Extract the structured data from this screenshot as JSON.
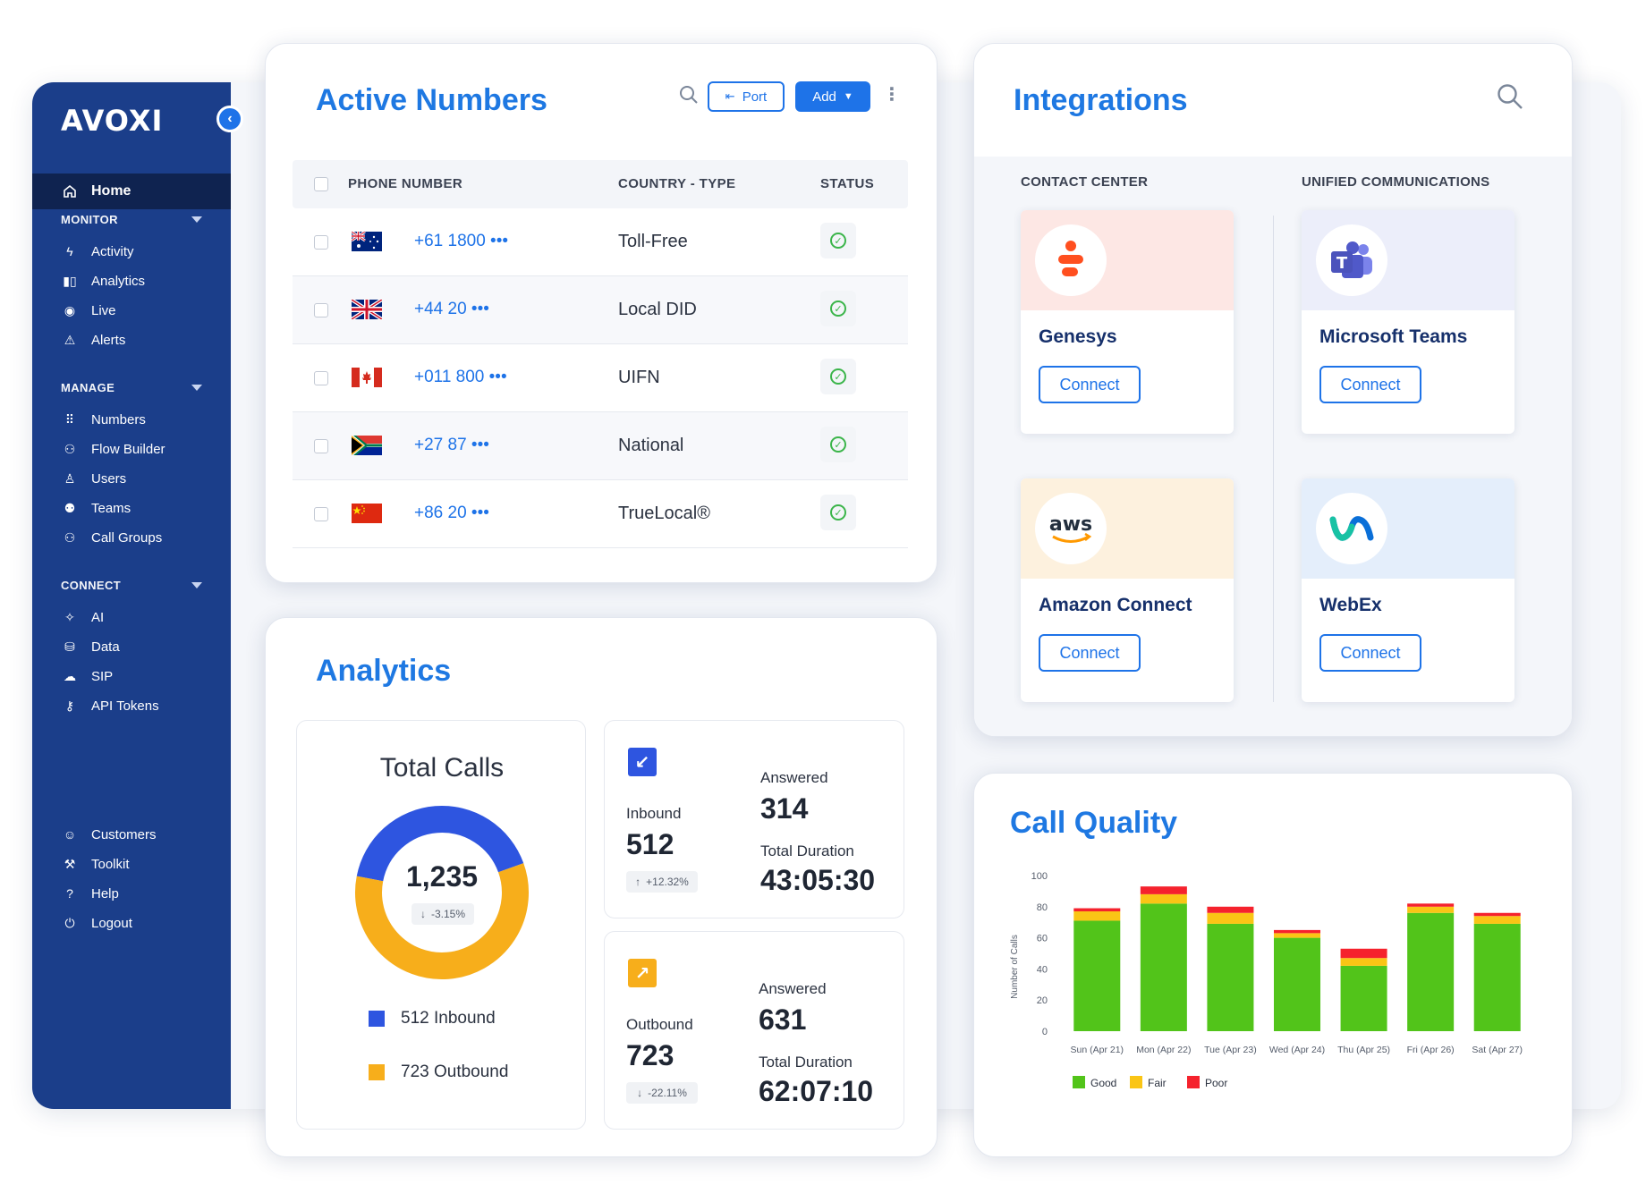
{
  "sidebar": {
    "logo": "AVOXI",
    "collapse_icon": "‹",
    "home": "Home",
    "monitor_label": "MONITOR",
    "monitor": [
      "Activity",
      "Analytics",
      "Live",
      "Alerts"
    ],
    "manage_label": "MANAGE",
    "manage": [
      "Numbers",
      "Flow Builder",
      "Users",
      "Teams",
      "Call Groups"
    ],
    "connect_label": "CONNECT",
    "connect": [
      "AI",
      "Data",
      "SIP",
      "API Tokens"
    ],
    "bottom": [
      "Customers",
      "Toolkit",
      "Help",
      "Logout"
    ]
  },
  "active_numbers": {
    "title": "Active Numbers",
    "port_label": "Port",
    "add_label": "Add",
    "columns": [
      "PHONE NUMBER",
      "COUNTRY - TYPE",
      "STATUS"
    ],
    "rows": [
      {
        "flag": "au",
        "number": "+61 1800 •••",
        "type": "Toll-Free"
      },
      {
        "flag": "uk",
        "number": "+44 20 •••",
        "type": "Local DID"
      },
      {
        "flag": "ca",
        "number": "+011 800 •••",
        "type": "UIFN"
      },
      {
        "flag": "za",
        "number": "+27 87 •••",
        "type": "National"
      },
      {
        "flag": "cn",
        "number": "+86 20 •••",
        "type": "TrueLocal®"
      }
    ]
  },
  "analytics": {
    "title": "Analytics",
    "total_calls": {
      "title": "Total Calls",
      "total": "1,235",
      "change": "-3.15%",
      "inbound_value": 512,
      "outbound_value": 723,
      "legend_inbound": "512 Inbound",
      "legend_outbound": "723 Outbound",
      "inbound_color": "#2e55e0",
      "outbound_color": "#f7ae1b"
    },
    "inbound": {
      "label": "Inbound",
      "value": "512",
      "change": "+12.32%",
      "answered_label": "Answered",
      "answered": "314",
      "duration_label": "Total Duration",
      "duration": "43:05:30"
    },
    "outbound": {
      "label": "Outbound",
      "value": "723",
      "change": "-22.11%",
      "answered_label": "Answered",
      "answered": "631",
      "duration_label": "Total Duration",
      "duration": "62:07:10"
    }
  },
  "integrations": {
    "title": "Integrations",
    "contact_center_label": "CONTACT CENTER",
    "unified_comm_label": "UNIFIED COMMUNICATIONS",
    "cards": [
      {
        "name": "Genesys",
        "connect": "Connect",
        "banner": "#fde7e4"
      },
      {
        "name": "Microsoft Teams",
        "connect": "Connect",
        "banner": "#eceefa"
      },
      {
        "name": "Amazon Connect",
        "connect": "Connect",
        "banner": "#fdf1de",
        "logo_text": "aws"
      },
      {
        "name": "WebEx",
        "connect": "Connect",
        "banner": "#e4eefb"
      }
    ]
  },
  "call_quality": {
    "title": "Call Quality"
  },
  "chart_data": {
    "type": "bar",
    "stacked": true,
    "title": "Call Quality",
    "ylabel": "Number of Calls",
    "xlabel": "",
    "ylim": [
      0,
      100
    ],
    "yticks": [
      0,
      20,
      40,
      60,
      80,
      100
    ],
    "categories": [
      "Sun (Apr 21)",
      "Mon (Apr 22)",
      "Tue (Apr 23)",
      "Wed (Apr 24)",
      "Thu (Apr 25)",
      "Fri (Apr 26)",
      "Sat (Apr 27)"
    ],
    "series": [
      {
        "name": "Good",
        "color": "#52c41a",
        "values": [
          71,
          82,
          69,
          60,
          42,
          76,
          69
        ]
      },
      {
        "name": "Fair",
        "color": "#fac515",
        "values": [
          6,
          6,
          7,
          3,
          5,
          4,
          5
        ]
      },
      {
        "name": "Poor",
        "color": "#f5222d",
        "values": [
          2,
          5,
          4,
          2,
          6,
          2,
          2
        ]
      }
    ],
    "legend_position": "bottom-left",
    "grid": false
  }
}
